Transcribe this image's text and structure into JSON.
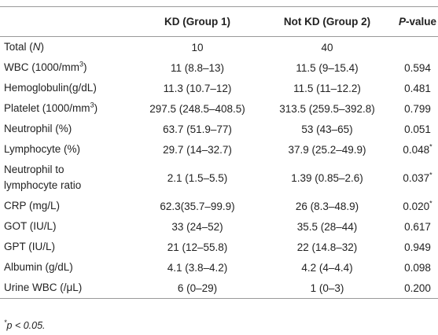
{
  "table": {
    "header": {
      "kd": "KD (Group 1)",
      "notkd": "Not KD (Group 2)",
      "p": [
        "P",
        "-value"
      ]
    },
    "rows": [
      {
        "label": [
          "Total (",
          "N",
          ")"
        ],
        "kd": "10",
        "notkd": "40"
      },
      {
        "label": [
          "WBC (1000/mm",
          "3",
          ")"
        ],
        "kd": "11 (8.8–13)",
        "notkd": "11.5 (9–15.4)",
        "p": [
          "0.594"
        ]
      },
      {
        "label": [
          "Hemoglobulin(g/dL)"
        ],
        "kd": "11.3 (10.7–12)",
        "notkd": "11.5 (11–12.2)",
        "p": [
          "0.481"
        ]
      },
      {
        "label": [
          "Platelet (1000/mm",
          "3",
          ")"
        ],
        "kd": "297.5 (248.5–408.5)",
        "notkd": "313.5 (259.5–392.8)",
        "p": [
          "0.799"
        ]
      },
      {
        "label": [
          "Neutrophil (%)"
        ],
        "kd": "63.7 (51.9–77)",
        "notkd": "53 (43–65)",
        "p": [
          "0.051"
        ]
      },
      {
        "label": [
          "Lymphocyte (%)"
        ],
        "kd": "29.7 (14–32.7)",
        "notkd": "37.9 (25.2–49.9)",
        "p": [
          "0.048",
          "*"
        ]
      },
      {
        "label": [
          "Neutrophil to lymphocyte ratio"
        ],
        "kd": "2.1 (1.5–5.5)",
        "notkd": "1.39 (0.85–2.6)",
        "p": [
          "0.037",
          "*"
        ]
      },
      {
        "label": [
          "CRP (mg/L)"
        ],
        "kd": "62.3(35.7–99.9)",
        "notkd": "26 (8.3–48.9)",
        "p": [
          "0.020",
          "*"
        ]
      },
      {
        "label": [
          "GOT (IU/L)"
        ],
        "kd": "33 (24–52)",
        "notkd": "35.5 (28–44)",
        "p": [
          "0.617"
        ]
      },
      {
        "label": [
          "GPT (IU/L)"
        ],
        "kd": "21 (12–55.8)",
        "notkd": "22 (14.8–32)",
        "p": [
          "0.949"
        ]
      },
      {
        "label": [
          "Albumin (g/dL)"
        ],
        "kd": "4.1 (3.8–4.2)",
        "notkd": "4.2 (4–4.4)",
        "p": [
          "0.098"
        ]
      },
      {
        "label": [
          "Urine WBC (/μL)"
        ],
        "kd": "6 (0–29)",
        "notkd": "1 (0–3)",
        "p": [
          "0.200"
        ]
      }
    ],
    "footnote": [
      "*",
      "p < 0.05."
    ]
  }
}
